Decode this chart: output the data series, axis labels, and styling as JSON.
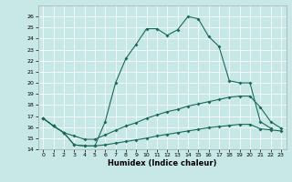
{
  "title": "",
  "xlabel": "Humidex (Indice chaleur)",
  "xlim": [
    -0.5,
    23.5
  ],
  "ylim": [
    14,
    27
  ],
  "yticks": [
    14,
    15,
    16,
    17,
    18,
    19,
    20,
    21,
    22,
    23,
    24,
    25,
    26
  ],
  "xticks": [
    0,
    1,
    2,
    3,
    4,
    5,
    6,
    7,
    8,
    9,
    10,
    11,
    12,
    13,
    14,
    15,
    16,
    17,
    18,
    19,
    20,
    21,
    22,
    23
  ],
  "bg_color": "#c8e8e8",
  "line_color": "#1a6a5a",
  "line1_x": [
    0,
    1,
    2,
    3,
    4,
    5,
    6,
    7,
    8,
    9,
    10,
    11,
    12,
    13,
    14,
    15,
    16,
    17,
    18,
    19,
    20,
    21,
    22
  ],
  "line1_y": [
    16.8,
    16.1,
    15.5,
    14.4,
    14.3,
    14.3,
    16.5,
    20.0,
    22.2,
    23.5,
    24.9,
    24.9,
    24.3,
    24.8,
    26.0,
    25.8,
    24.2,
    23.3,
    20.2,
    20.0,
    20.0,
    16.5,
    15.9
  ],
  "line2_x": [
    0,
    1,
    2,
    3,
    4,
    5,
    6,
    7,
    8,
    9,
    10,
    11,
    12,
    13,
    14,
    15,
    16,
    17,
    18,
    19,
    20,
    21,
    22,
    23
  ],
  "line2_y": [
    16.8,
    16.1,
    15.5,
    15.2,
    14.9,
    14.9,
    15.3,
    15.7,
    16.1,
    16.4,
    16.8,
    17.1,
    17.4,
    17.6,
    17.9,
    18.1,
    18.3,
    18.5,
    18.7,
    18.8,
    18.8,
    17.8,
    16.5,
    15.9
  ],
  "line3_x": [
    0,
    1,
    2,
    3,
    4,
    5,
    6,
    7,
    8,
    9,
    10,
    11,
    12,
    13,
    14,
    15,
    16,
    17,
    18,
    19,
    20,
    21,
    22,
    23
  ],
  "line3_y": [
    16.8,
    16.1,
    15.5,
    14.4,
    14.3,
    14.3,
    14.4,
    14.55,
    14.7,
    14.85,
    15.0,
    15.2,
    15.35,
    15.5,
    15.65,
    15.8,
    15.95,
    16.05,
    16.15,
    16.25,
    16.25,
    15.85,
    15.75,
    15.65
  ]
}
